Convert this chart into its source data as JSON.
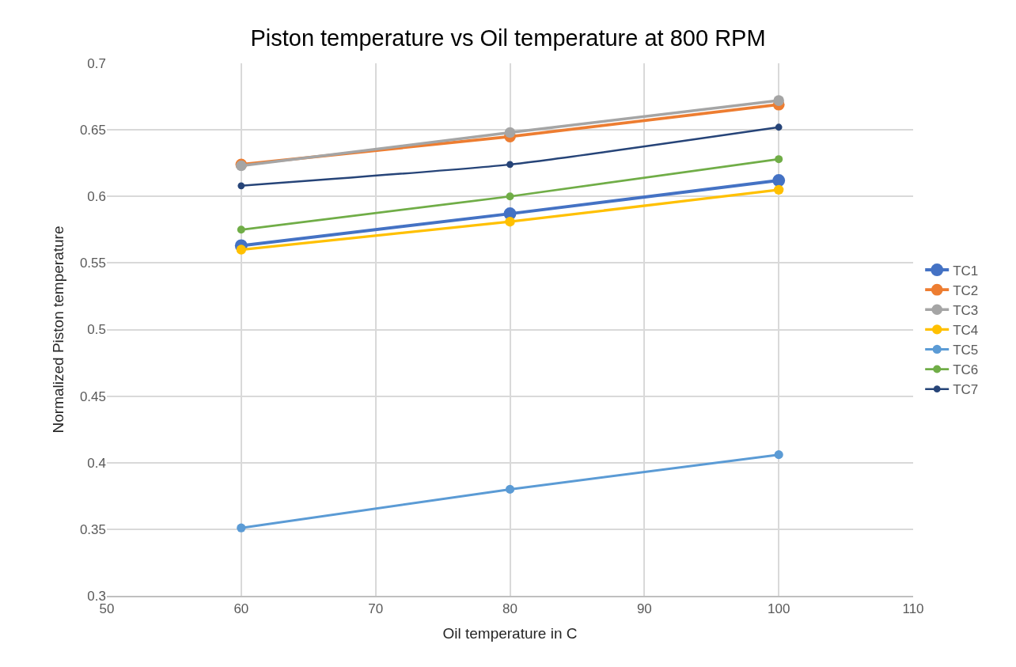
{
  "chart_data": {
    "type": "line",
    "title": "Piston temperature vs Oil temperature at 800 RPM",
    "xlabel": "Oil temperature in C",
    "ylabel": "Normalized Piston temperature",
    "x": [
      60,
      80,
      100
    ],
    "series": [
      {
        "name": "TC1",
        "color": "#4472c4",
        "values": [
          0.563,
          0.587,
          0.612
        ]
      },
      {
        "name": "TC2",
        "color": "#ed7d31",
        "values": [
          0.624,
          0.645,
          0.669
        ]
      },
      {
        "name": "TC3",
        "color": "#a5a5a5",
        "values": [
          0.623,
          0.648,
          0.672
        ]
      },
      {
        "name": "TC4",
        "color": "#ffc000",
        "values": [
          0.56,
          0.581,
          0.605
        ]
      },
      {
        "name": "TC5",
        "color": "#5b9bd5",
        "values": [
          0.351,
          0.38,
          0.406
        ]
      },
      {
        "name": "TC6",
        "color": "#70ad47",
        "values": [
          0.575,
          0.6,
          0.628
        ]
      },
      {
        "name": "TC7",
        "color": "#264478",
        "values": [
          0.608,
          0.624,
          0.652
        ]
      }
    ],
    "xlim": [
      50,
      110
    ],
    "xticks": [
      50,
      60,
      70,
      80,
      90,
      100,
      110
    ],
    "ylim": [
      0.3,
      0.7
    ],
    "yticks": [
      0.3,
      0.35,
      0.4,
      0.45,
      0.5,
      0.55,
      0.6,
      0.65,
      0.7
    ],
    "grid": true,
    "legend": "right",
    "marker": "circle",
    "line_style": "solid"
  }
}
